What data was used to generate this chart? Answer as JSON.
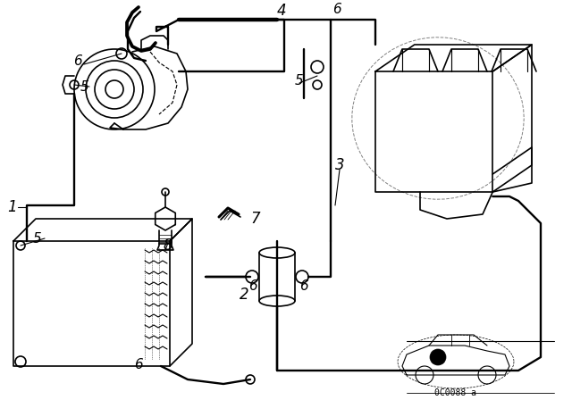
{
  "bg_color": "#ffffff",
  "line_color": "#000000",
  "lw": 1.2,
  "watermark": "0C0088 a"
}
